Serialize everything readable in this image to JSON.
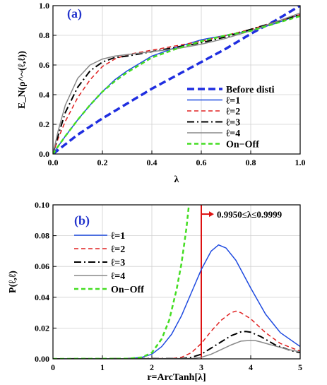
{
  "chart_data": [
    {
      "type": "line",
      "panel_label": "(a)",
      "xlabel": "λ",
      "ylabel": "E_N(ρ^~(ℓ,ℓ))",
      "xlim": [
        0,
        1
      ],
      "ylim": [
        0,
        1
      ],
      "xticks": [
        "0.0",
        "0.2",
        "0.4",
        "0.6",
        "0.8",
        "1.0"
      ],
      "yticks": [
        "0.0",
        "0.2",
        "0.4",
        "0.6",
        "0.8",
        "1.0"
      ],
      "grid": true,
      "legend_position": "bottom-right",
      "series": [
        {
          "name": "Before disti",
          "color": "#1f2ee0",
          "dash": "long",
          "width": 3.5,
          "x": [
            0,
            0.1,
            0.2,
            0.3,
            0.4,
            0.5,
            0.6,
            0.7,
            0.8,
            0.9,
            1.0
          ],
          "y": [
            0,
            0.13,
            0.24,
            0.34,
            0.44,
            0.53,
            0.62,
            0.71,
            0.81,
            0.9,
            1.0
          ]
        },
        {
          "name": "ℓ=1",
          "color": "#1f4be0",
          "dash": "solid",
          "width": 1.5,
          "x": [
            0,
            0.02,
            0.05,
            0.1,
            0.15,
            0.2,
            0.25,
            0.3,
            0.4,
            0.5,
            0.6,
            0.7,
            0.8,
            0.9,
            1.0
          ],
          "y": [
            0,
            0.05,
            0.12,
            0.23,
            0.33,
            0.42,
            0.5,
            0.56,
            0.66,
            0.72,
            0.77,
            0.8,
            0.83,
            0.88,
            0.94
          ]
        },
        {
          "name": "ℓ=2",
          "color": "#e02020",
          "dash": "medium",
          "width": 1.5,
          "x": [
            0,
            0.02,
            0.05,
            0.1,
            0.15,
            0.2,
            0.25,
            0.3,
            0.4,
            0.5,
            0.6,
            0.7,
            0.8,
            0.9,
            1.0
          ],
          "y": [
            0,
            0.1,
            0.22,
            0.38,
            0.5,
            0.59,
            0.64,
            0.67,
            0.7,
            0.73,
            0.76,
            0.8,
            0.84,
            0.89,
            0.94
          ]
        },
        {
          "name": "ℓ=3",
          "color": "#000000",
          "dash": "dashdot",
          "width": 2,
          "x": [
            0,
            0.02,
            0.05,
            0.1,
            0.15,
            0.2,
            0.25,
            0.3,
            0.4,
            0.5,
            0.6,
            0.7,
            0.8,
            0.9,
            1.0
          ],
          "y": [
            0,
            0.12,
            0.28,
            0.45,
            0.56,
            0.62,
            0.65,
            0.66,
            0.69,
            0.72,
            0.75,
            0.79,
            0.84,
            0.89,
            0.94
          ]
        },
        {
          "name": "ℓ=4",
          "color": "#888888",
          "dash": "solid",
          "width": 1.5,
          "x": [
            0,
            0.02,
            0.05,
            0.1,
            0.15,
            0.2,
            0.25,
            0.3,
            0.4,
            0.5,
            0.6,
            0.7,
            0.8,
            0.9,
            1.0
          ],
          "y": [
            0,
            0.15,
            0.33,
            0.51,
            0.6,
            0.64,
            0.66,
            0.67,
            0.69,
            0.71,
            0.74,
            0.78,
            0.83,
            0.89,
            0.95
          ]
        },
        {
          "name": "On−Off",
          "color": "#44dd22",
          "dash": "medium",
          "width": 2.5,
          "x": [
            0,
            0.02,
            0.05,
            0.1,
            0.15,
            0.2,
            0.25,
            0.3,
            0.4,
            0.5,
            0.6,
            0.7,
            0.8,
            0.9,
            1.0
          ],
          "y": [
            0,
            0.05,
            0.12,
            0.23,
            0.33,
            0.42,
            0.49,
            0.55,
            0.65,
            0.71,
            0.76,
            0.8,
            0.83,
            0.88,
            0.93
          ]
        }
      ]
    },
    {
      "type": "line",
      "panel_label": "(b)",
      "xlabel": "r=ArcTanh[λ]",
      "ylabel": "P(ℓ,ℓ)",
      "xlim": [
        0,
        5
      ],
      "ylim": [
        0,
        0.1
      ],
      "xticks": [
        "0",
        "1",
        "2",
        "3",
        "4",
        "5"
      ],
      "yticks": [
        "0.00",
        "0.02",
        "0.04",
        "0.06",
        "0.08",
        "0.10"
      ],
      "grid": true,
      "legend_position": "top-left",
      "annotation": {
        "text": "0.9950≤λ≤0.9999",
        "x": 3,
        "y": 0.094,
        "line_x": 3,
        "color": "#dd1111"
      },
      "series": [
        {
          "name": "ℓ=1",
          "color": "#1f4be0",
          "dash": "solid",
          "width": 1.5,
          "x": [
            0,
            1.5,
            1.8,
            2.0,
            2.2,
            2.4,
            2.6,
            2.8,
            3.0,
            3.2,
            3.35,
            3.5,
            3.7,
            4.0,
            4.3,
            4.6,
            5.0
          ],
          "y": [
            0,
            0.0001,
            0.001,
            0.003,
            0.008,
            0.016,
            0.028,
            0.043,
            0.058,
            0.07,
            0.074,
            0.072,
            0.064,
            0.046,
            0.029,
            0.017,
            0.008
          ]
        },
        {
          "name": "ℓ=2",
          "color": "#e02020",
          "dash": "medium",
          "width": 1.5,
          "x": [
            0,
            2.4,
            2.6,
            2.8,
            3.0,
            3.2,
            3.4,
            3.6,
            3.7,
            3.8,
            4.0,
            4.3,
            4.6,
            5.0
          ],
          "y": [
            0,
            0.0002,
            0.001,
            0.004,
            0.01,
            0.018,
            0.025,
            0.03,
            0.031,
            0.03,
            0.026,
            0.017,
            0.01,
            0.005
          ]
        },
        {
          "name": "ℓ=3",
          "color": "#000000",
          "dash": "dashdot",
          "width": 2,
          "x": [
            0,
            2.6,
            2.8,
            3.0,
            3.2,
            3.4,
            3.6,
            3.8,
            3.9,
            4.0,
            4.2,
            4.5,
            4.8,
            5.0
          ],
          "y": [
            0,
            0.0002,
            0.001,
            0.003,
            0.007,
            0.011,
            0.015,
            0.0175,
            0.0178,
            0.0173,
            0.0145,
            0.009,
            0.0055,
            0.004
          ]
        },
        {
          "name": "ℓ=4",
          "color": "#888888",
          "dash": "solid",
          "width": 1.5,
          "x": [
            0,
            2.8,
            3.0,
            3.2,
            3.4,
            3.6,
            3.8,
            4.0,
            4.1,
            4.2,
            4.4,
            4.7,
            5.0
          ],
          "y": [
            0,
            0.0002,
            0.001,
            0.003,
            0.006,
            0.009,
            0.0115,
            0.012,
            0.0118,
            0.011,
            0.0092,
            0.0065,
            0.0045
          ]
        },
        {
          "name": "On−Off",
          "color": "#44dd22",
          "dash": "medium",
          "width": 2.5,
          "x": [
            0,
            1.5,
            1.8,
            2.0,
            2.2,
            2.35,
            2.5,
            2.6,
            2.7,
            2.75
          ],
          "y": [
            0,
            0.0001,
            0.001,
            0.004,
            0.013,
            0.025,
            0.045,
            0.062,
            0.085,
            0.1
          ]
        }
      ]
    }
  ]
}
